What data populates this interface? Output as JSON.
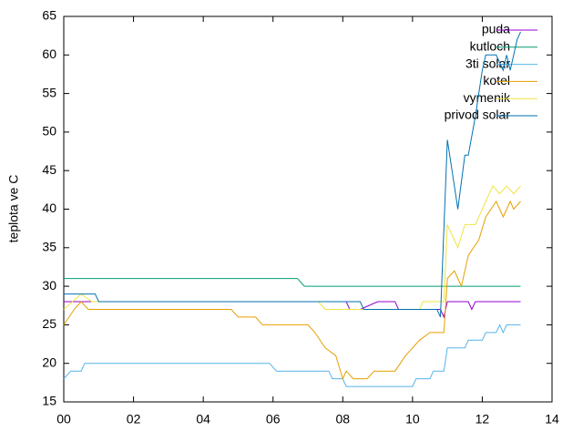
{
  "chart_data": {
    "type": "line",
    "y_label": "teplota ve C",
    "xlim": [
      0,
      14
    ],
    "ylim": [
      15,
      65
    ],
    "xticks": [
      {
        "value": 0,
        "label": "00"
      },
      {
        "value": 2,
        "label": "02"
      },
      {
        "value": 4,
        "label": "04"
      },
      {
        "value": 6,
        "label": "06"
      },
      {
        "value": 8,
        "label": "08"
      },
      {
        "value": 10,
        "label": "10"
      },
      {
        "value": 12,
        "label": "12"
      },
      {
        "value": 14,
        "label": "14"
      }
    ],
    "yticks": [
      15,
      20,
      25,
      30,
      35,
      40,
      45,
      50,
      55,
      60,
      65
    ],
    "legend": "top-right",
    "series": [
      {
        "name": "puda",
        "color": "#9400d3",
        "x": [
          0,
          8.1,
          8.2,
          8.5,
          9.0,
          9.5,
          9.6,
          10.8,
          10.9,
          11.0,
          11.6,
          11.7,
          11.8,
          13.1
        ],
        "values": [
          28,
          28,
          27,
          27,
          28,
          28,
          27,
          27,
          26,
          28,
          28,
          27,
          28,
          28
        ]
      },
      {
        "name": "kutloch",
        "color": "#009e73",
        "x": [
          0,
          6.7,
          6.9,
          13.1
        ],
        "values": [
          31,
          31,
          30,
          30
        ]
      },
      {
        "name": "3ti solar",
        "color": "#56b4e9",
        "x": [
          0,
          0.2,
          0.5,
          0.6,
          5.9,
          6.1,
          7.6,
          7.7,
          8.0,
          8.1,
          10.0,
          10.1,
          10.5,
          10.6,
          10.9,
          11.0,
          11.5,
          11.6,
          12.0,
          12.1,
          12.4,
          12.5,
          12.6,
          12.7,
          13.1
        ],
        "values": [
          18,
          19,
          19,
          20,
          20,
          19,
          19,
          18,
          18,
          17,
          17,
          18,
          18,
          19,
          19,
          22,
          22,
          23,
          23,
          24,
          24,
          25,
          24,
          25,
          25
        ]
      },
      {
        "name": "kotel",
        "color": "#e69f00",
        "x": [
          0,
          0.3,
          0.5,
          0.7,
          4.8,
          5.0,
          5.5,
          5.7,
          7.0,
          7.2,
          7.5,
          7.8,
          8.0,
          8.1,
          8.3,
          8.7,
          8.9,
          9.5,
          9.8,
          10.2,
          10.5,
          10.9,
          11.0,
          11.2,
          11.4,
          11.6,
          11.9,
          12.1,
          12.4,
          12.6,
          12.8,
          12.9,
          13.1
        ],
        "values": [
          25,
          27,
          28,
          27,
          27,
          26,
          26,
          25,
          25,
          24,
          22,
          21,
          18,
          19,
          18,
          18,
          19,
          19,
          21,
          23,
          24,
          24,
          31,
          32,
          30,
          34,
          36,
          39,
          41,
          39,
          41,
          40,
          41
        ]
      },
      {
        "name": "vymenik",
        "color": "#f0e442",
        "x": [
          0,
          0.5,
          0.8,
          7.3,
          7.5,
          10.2,
          10.3,
          10.9,
          11.0,
          11.3,
          11.5,
          11.8,
          12.1,
          12.3,
          12.5,
          12.7,
          12.9,
          13.1
        ],
        "values": [
          27,
          29,
          28,
          28,
          27,
          27,
          28,
          28,
          38,
          35,
          38,
          38,
          41,
          43,
          42,
          43,
          42,
          43
        ]
      },
      {
        "name": "privod solar",
        "color": "#0072b2",
        "x": [
          0,
          0.9,
          1.0,
          8.5,
          8.6,
          10.7,
          10.8,
          11.0,
          11.2,
          11.3,
          11.5,
          11.6,
          11.8,
          12.0,
          12.1,
          12.4,
          12.6,
          12.7,
          12.8,
          13.0,
          13.1
        ],
        "values": [
          29,
          29,
          28,
          28,
          27,
          27,
          26,
          49,
          43,
          40,
          47,
          47,
          52,
          58,
          60,
          60,
          58,
          60,
          58,
          62,
          63
        ]
      }
    ]
  }
}
